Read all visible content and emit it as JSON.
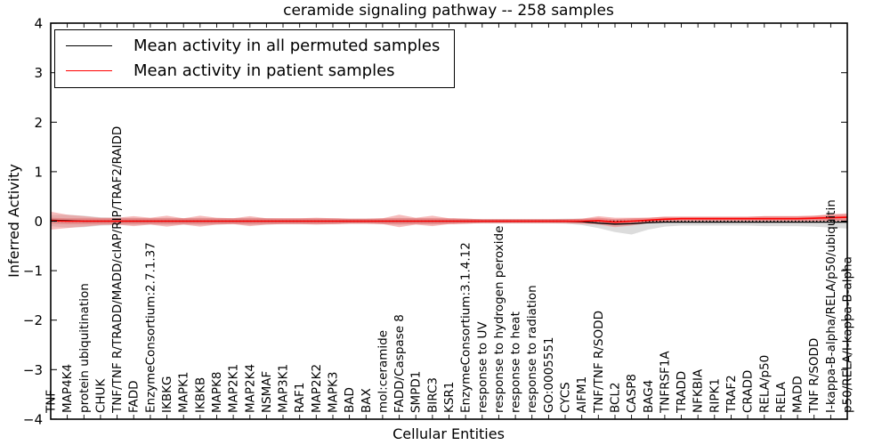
{
  "chart_data": {
    "type": "line",
    "title": "ceramide signaling pathway -- 258 samples",
    "xlabel": "Cellular Entities",
    "ylabel": "Inferred Activity",
    "ylim": [
      -4,
      4
    ],
    "grid": false,
    "legend_position": "upper left",
    "y_tick_values": [
      4,
      3,
      2,
      1,
      0,
      -1,
      -2,
      -3,
      -4
    ],
    "y_tick_labels": [
      "4",
      "3",
      "2",
      "1",
      "0",
      "−1",
      "−2",
      "−3",
      "−4"
    ],
    "categories": [
      "TNF",
      "MAP4K4",
      "protein ubiquitination",
      "CHUK",
      "TNF/TNF R/TRADD/MADD/cIAP/RIP/TRAF2/RAIDD",
      "FADD",
      "EnzymeConsortium:2.7.1.37",
      "IKBKG",
      "MAPK1",
      "IKBKB",
      "MAPK8",
      "MAP2K1",
      "MAP2K4",
      "NSMAF",
      "MAP3K1",
      "RAF1",
      "MAP2K2",
      "MAPK3",
      "BAD",
      "BAX",
      "mol:ceramide",
      "FADD/Caspase 8",
      "SMPD1",
      "BIRC3",
      "KSR1",
      "EnzymeConsortium:3.1.4.12",
      "response to UV",
      "response to hydrogen peroxide",
      "response to heat",
      "response to radiation",
      "GO:0005551",
      "CYCS",
      "AIFM1",
      "TNF/TNF R/SODD",
      "BCL2",
      "CASP8",
      "BAG4",
      "TNFRSF1A",
      "TRADD",
      "NFKBIA",
      "RIPK1",
      "TRAF2",
      "CRADD",
      "RELA/p50",
      "RELA",
      "MADD",
      "TNF R/SODD",
      "I-kappa-B-alpha/RELA/p50/ubiquitin",
      "p50/RELA/I-kappa-B-alpha"
    ],
    "legend": [
      {
        "label": "Mean activity in all permuted samples",
        "color": "#000000"
      },
      {
        "label": "Mean activity in patient samples",
        "color": "#ff0000"
      }
    ],
    "series": [
      {
        "name": "Mean activity in all permuted samples",
        "color": "#000000",
        "values": [
          0.02,
          0.01,
          0,
          0,
          0,
          0,
          0,
          0,
          0,
          0,
          0,
          0,
          0,
          0,
          0,
          0,
          0,
          0,
          0,
          0,
          0,
          0,
          0,
          0,
          0,
          0,
          0,
          0,
          0,
          0,
          0,
          0,
          -0.01,
          -0.04,
          -0.06,
          -0.05,
          -0.03,
          -0.02,
          -0.02,
          -0.02,
          -0.02,
          -0.02,
          -0.02,
          -0.02,
          -0.02,
          -0.02,
          -0.02,
          -0.02,
          -0.02
        ]
      },
      {
        "name": "Mean activity in patient samples",
        "color": "#ff0000",
        "values": [
          0.01,
          0,
          0,
          0,
          0,
          0,
          0,
          0,
          0,
          0,
          0,
          0,
          0,
          0,
          0,
          0,
          0,
          0,
          0,
          0,
          0,
          0,
          0,
          0,
          0,
          0,
          0,
          0,
          0,
          0,
          0,
          0,
          0,
          0.01,
          -0.02,
          0,
          0.02,
          0.04,
          0.05,
          0.05,
          0.05,
          0.05,
          0.05,
          0.05,
          0.05,
          0.05,
          0.06,
          0.07,
          0.08
        ]
      }
    ],
    "band_offsets": {
      "permuted_up": [
        0.1,
        0.12,
        0.11,
        0.08,
        0.07,
        0.07,
        0.06,
        0.07,
        0.06,
        0.07,
        0.06,
        0.06,
        0.07,
        0.06,
        0.05,
        0.05,
        0.05,
        0.05,
        0.05,
        0.05,
        0.05,
        0.07,
        0.06,
        0.06,
        0.05,
        0.05,
        0.04,
        0.04,
        0.04,
        0.04,
        0.04,
        0.05,
        0.06,
        0.07,
        0.09,
        0.08,
        0.06,
        0.05,
        0.05,
        0.05,
        0.05,
        0.05,
        0.05,
        0.05,
        0.05,
        0.05,
        0.06,
        0.07,
        0.08
      ],
      "permuted_dn": [
        0.12,
        0.14,
        0.12,
        0.09,
        0.08,
        0.08,
        0.07,
        0.08,
        0.07,
        0.08,
        0.07,
        0.06,
        0.08,
        0.07,
        0.06,
        0.06,
        0.06,
        0.06,
        0.05,
        0.05,
        0.06,
        0.08,
        0.06,
        0.07,
        0.05,
        0.05,
        0.04,
        0.04,
        0.04,
        0.04,
        0.04,
        0.05,
        0.07,
        0.1,
        0.16,
        0.22,
        0.14,
        0.09,
        0.07,
        0.07,
        0.07,
        0.07,
        0.07,
        0.08,
        0.08,
        0.08,
        0.09,
        0.11,
        0.13
      ],
      "patient_up": [
        0.18,
        0.13,
        0.1,
        0.07,
        0.07,
        0.1,
        0.07,
        0.11,
        0.06,
        0.11,
        0.07,
        0.06,
        0.1,
        0.06,
        0.06,
        0.06,
        0.07,
        0.06,
        0.05,
        0.05,
        0.06,
        0.13,
        0.07,
        0.11,
        0.06,
        0.05,
        0.04,
        0.04,
        0.04,
        0.04,
        0.04,
        0.04,
        0.05,
        0.09,
        0.09,
        0.07,
        0.05,
        0.05,
        0.04,
        0.04,
        0.04,
        0.04,
        0.04,
        0.05,
        0.05,
        0.05,
        0.05,
        0.07,
        0.08
      ],
      "patient_dn": [
        0.18,
        0.14,
        0.11,
        0.08,
        0.07,
        0.1,
        0.07,
        0.11,
        0.07,
        0.11,
        0.07,
        0.06,
        0.1,
        0.07,
        0.06,
        0.06,
        0.07,
        0.06,
        0.05,
        0.05,
        0.06,
        0.12,
        0.07,
        0.1,
        0.06,
        0.05,
        0.04,
        0.04,
        0.04,
        0.04,
        0.04,
        0.04,
        0.05,
        0.08,
        0.1,
        0.09,
        0.06,
        0.05,
        0.05,
        0.05,
        0.05,
        0.05,
        0.05,
        0.05,
        0.05,
        0.05,
        0.06,
        0.07,
        0.08
      ]
    },
    "bands": [
      {
        "name": "permuted-band",
        "fill": "#d8d8d8",
        "opacity": 0.9,
        "center": 0,
        "up": "permuted_up",
        "dn": "permuted_dn"
      },
      {
        "name": "patient-band",
        "fill": "#ee8585",
        "opacity": 0.55,
        "center": 1,
        "up": "patient_up",
        "dn": "patient_dn"
      },
      {
        "name": "patient-band-core",
        "fill": "#e25f5f",
        "opacity": 0.45,
        "center": 1,
        "up": "patient_up",
        "dn": "patient_dn",
        "cap": 0.06
      }
    ],
    "zero_line": {
      "value": 0,
      "color": "#000000",
      "style": "dotted"
    },
    "colors": {
      "axis": "#000000",
      "background": "#ffffff"
    }
  }
}
